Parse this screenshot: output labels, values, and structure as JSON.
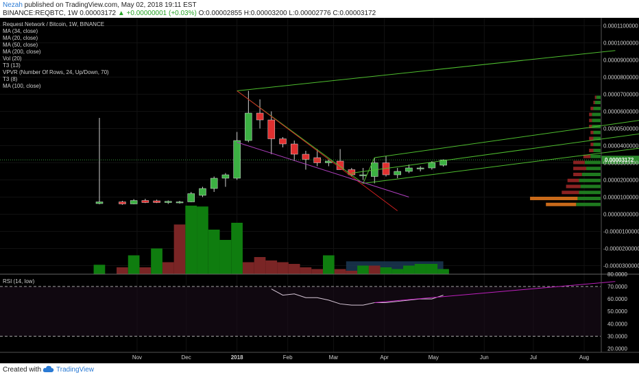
{
  "header": {
    "author": "Nezah",
    "published_text": " published on TradingView.com, May 02, 2018 19:11 EST",
    "symbol_line_start": "BINANCE:REQBTC, 1W  0.00003172 ",
    "change_text": "▲ +0.00000001 (+0.03%)",
    "ohlc_text": " O:0.00002855 H:0.00003200 L:0.00002776 C:0.00003172"
  },
  "indicators": [
    "Request Network / Bitcoin, 1W, BINANCE",
    "MA (34, close)",
    "MA (20, close)",
    "MA (50, close)",
    "MA (200, close)",
    "Vol (20)",
    "T3 (13)",
    "VPVR (Number Of Rows, 24, Up/Down, 70)",
    "T3 (8)",
    "MA (100, close)"
  ],
  "rsi_label": "RSI (14, low)",
  "footer": {
    "created_with": "Created with",
    "brand": "TradingView"
  },
  "colors": {
    "background": "#000000",
    "up": "#3cb043",
    "down": "#e03030",
    "volume_up": "#0f7d0f",
    "volume_down": "#7a2525",
    "trend_green": "#4fbf2f",
    "trend_red": "#d02020",
    "trend_purple": "#b040c0",
    "rsi_line": "#d8c8d8",
    "rsi_trend": "#c020c0",
    "price_badge": "#2d8a2d"
  },
  "chart_data": {
    "type": "candlestick",
    "title": "Request Network / Bitcoin, 1W, BINANCE",
    "price_axis_ticks": [
      "0.0001100000",
      "0.0001000000",
      "0.0000900000",
      "0.0000800000",
      "0.0000700000",
      "0.0000600000",
      "0.0000500000",
      "0.0000400000",
      "0.0000300000",
      "0.0000200000",
      "0.0000100000",
      "0.0000000000",
      "-0.0000100000",
      "-0.0000200000",
      "-0.0000300000"
    ],
    "price_ylim": [
      -3.5e-05,
      0.000113
    ],
    "last_price_label": "0.00003172",
    "last_price": 3.172e-05,
    "x_tick_labels": [
      "Nov",
      "Dec",
      "2018",
      "Feb",
      "Mar",
      "Apr",
      "May",
      "Jun",
      "Jul",
      "Aug"
    ],
    "candles": [
      {
        "t": "2017-10-09",
        "o": 6.2e-06,
        "h": 5.62e-05,
        "l": 5.8e-06,
        "c": 7.2e-06
      },
      {
        "t": "2017-10-23",
        "o": 7.2e-06,
        "h": 7.8e-06,
        "l": 5.5e-06,
        "c": 6e-06
      },
      {
        "t": "2017-10-30",
        "o": 6e-06,
        "h": 8.8e-06,
        "l": 5.8e-06,
        "c": 8e-06
      },
      {
        "t": "2017-11-06",
        "o": 8e-06,
        "h": 9e-06,
        "l": 6.5e-06,
        "c": 6.8e-06
      },
      {
        "t": "2017-11-13",
        "o": 7.8e-06,
        "h": 8.5e-06,
        "l": 6.5e-06,
        "c": 6.8e-06
      },
      {
        "t": "2017-11-20",
        "o": 6.8e-06,
        "h": 8e-06,
        "l": 6e-06,
        "c": 7.5e-06
      },
      {
        "t": "2017-11-27",
        "o": 6.8e-06,
        "h": 7.8e-06,
        "l": 6.2e-06,
        "c": 7.2e-06
      },
      {
        "t": "2017-12-04",
        "o": 7.2e-06,
        "h": 1.3e-05,
        "l": 7e-06,
        "c": 1.2e-05
      },
      {
        "t": "2017-12-11",
        "o": 1.1e-05,
        "h": 1.6e-05,
        "l": 1e-05,
        "c": 1.5e-05
      },
      {
        "t": "2017-12-18",
        "o": 1.5e-05,
        "h": 2.2e-05,
        "l": 1.3e-05,
        "c": 2.1e-05
      },
      {
        "t": "2017-12-25",
        "o": 2.1e-05,
        "h": 2.4e-05,
        "l": 1.6e-05,
        "c": 2.3e-05
      },
      {
        "t": "2018-01-01",
        "o": 2.1e-05,
        "h": 4.8e-05,
        "l": 2e-05,
        "c": 4.3e-05
      },
      {
        "t": "2018-01-08",
        "o": 4.3e-05,
        "h": 7.2e-05,
        "l": 4.2e-05,
        "c": 5.9e-05
      },
      {
        "t": "2018-01-15",
        "o": 5.9e-05,
        "h": 6.7e-05,
        "l": 5e-05,
        "c": 5.5e-05
      },
      {
        "t": "2018-01-22",
        "o": 5.5e-05,
        "h": 6e-05,
        "l": 3.5e-05,
        "c": 4.4e-05
      },
      {
        "t": "2018-01-29",
        "o": 4.4e-05,
        "h": 4.5e-05,
        "l": 3.9e-05,
        "c": 4.1e-05
      },
      {
        "t": "2018-02-05",
        "o": 4.1e-05,
        "h": 4.3e-05,
        "l": 3.1e-05,
        "c": 3.5e-05
      },
      {
        "t": "2018-02-12",
        "o": 3.5e-05,
        "h": 3.7e-05,
        "l": 2.6e-05,
        "c": 3.2e-05
      },
      {
        "t": "2018-02-19",
        "o": 3.3e-05,
        "h": 3.8e-05,
        "l": 2.8e-05,
        "c": 3e-05
      },
      {
        "t": "2018-02-26",
        "o": 3e-05,
        "h": 3.2e-05,
        "l": 2.8e-05,
        "c": 3.1e-05
      },
      {
        "t": "2018-03-05",
        "o": 3.1e-05,
        "h": 3.8e-05,
        "l": 2.6e-05,
        "c": 2.6e-05
      },
      {
        "t": "2018-03-12",
        "o": 2.6e-05,
        "h": 2.7e-05,
        "l": 2.2e-05,
        "c": 2.3e-05
      },
      {
        "t": "2018-03-19",
        "o": 2.3e-05,
        "h": 2.7e-05,
        "l": 2e-05,
        "c": 2.3e-05
      },
      {
        "t": "2018-03-26",
        "o": 2.2e-05,
        "h": 3.3e-05,
        "l": 1.8e-05,
        "c": 3e-05
      },
      {
        "t": "2018-04-02",
        "o": 3e-05,
        "h": 3.4e-05,
        "l": 2.2e-05,
        "c": 2.3e-05
      },
      {
        "t": "2018-04-09",
        "o": 2.3e-05,
        "h": 2.7e-05,
        "l": 2.1e-05,
        "c": 2.5e-05
      },
      {
        "t": "2018-04-16",
        "o": 2.5e-05,
        "h": 2.9e-05,
        "l": 2.4e-05,
        "c": 2.7e-05
      },
      {
        "t": "2018-04-23",
        "o": 2.7e-05,
        "h": 2.8e-05,
        "l": 2.5e-05,
        "c": 2.7e-05
      },
      {
        "t": "2018-04-30",
        "o": 2.7e-05,
        "h": 3.1e-05,
        "l": 2.6e-05,
        "c": 3e-05
      },
      {
        "t": "2018-05-07",
        "o": 2.86e-05,
        "h": 3.2e-05,
        "l": 2.78e-05,
        "c": 3.17e-05
      }
    ],
    "volume_note": "volume pane shares the price axis (bars under 0.0000000000)",
    "volume": [
      {
        "t": "2017-10-09",
        "v": 5.5e-06,
        "up": true
      },
      {
        "t": "2017-10-23",
        "v": 4e-06,
        "up": false
      },
      {
        "t": "2017-10-30",
        "v": 1.1e-05,
        "up": true
      },
      {
        "t": "2017-11-06",
        "v": 4e-06,
        "up": false
      },
      {
        "t": "2017-11-13",
        "v": 1.5e-05,
        "up": true
      },
      {
        "t": "2017-11-20",
        "v": 7e-06,
        "up": false
      },
      {
        "t": "2017-11-27",
        "v": 2.9e-05,
        "up": false
      },
      {
        "t": "2017-12-04",
        "v": 4e-05,
        "up": true
      },
      {
        "t": "2017-12-11",
        "v": 3.95e-05,
        "up": true
      },
      {
        "t": "2017-12-18",
        "v": 2.6e-05,
        "up": true
      },
      {
        "t": "2017-12-25",
        "v": 2e-05,
        "up": true
      },
      {
        "t": "2018-01-01",
        "v": 3e-05,
        "up": true
      },
      {
        "t": "2018-01-08",
        "v": 7e-06,
        "up": false
      },
      {
        "t": "2018-01-15",
        "v": 1e-05,
        "up": false
      },
      {
        "t": "2018-01-22",
        "v": 8e-06,
        "up": false
      },
      {
        "t": "2018-01-29",
        "v": 7e-06,
        "up": false
      },
      {
        "t": "2018-02-05",
        "v": 6e-06,
        "up": false
      },
      {
        "t": "2018-02-12",
        "v": 4e-06,
        "up": false
      },
      {
        "t": "2018-02-19",
        "v": 3e-06,
        "up": false
      },
      {
        "t": "2018-02-26",
        "v": 1.1e-05,
        "up": true
      },
      {
        "t": "2018-03-05",
        "v": 3e-06,
        "up": false
      },
      {
        "t": "2018-03-12",
        "v": 2e-06,
        "up": false
      },
      {
        "t": "2018-03-19",
        "v": 5e-06,
        "up": true
      },
      {
        "t": "2018-03-26",
        "v": 5e-06,
        "up": false
      },
      {
        "t": "2018-04-02",
        "v": 4e-06,
        "up": true
      },
      {
        "t": "2018-04-09",
        "v": 3e-06,
        "up": true
      },
      {
        "t": "2018-04-16",
        "v": 5e-06,
        "up": true
      },
      {
        "t": "2018-04-23",
        "v": 6e-06,
        "up": true
      },
      {
        "t": "2018-04-30",
        "v": 6e-06,
        "up": true
      },
      {
        "t": "2018-05-07",
        "v": 3e-06,
        "up": true
      }
    ],
    "vpvr_note": "volume profile rows: price level, up-volume share and down-volume share (relative units)",
    "vpvr": [
      {
        "price": 6.8e-05,
        "up": 3,
        "down": 1
      },
      {
        "price": 6.5e-05,
        "up": 4,
        "down": 1
      },
      {
        "price": 6.15e-05,
        "up": 5,
        "down": 2
      },
      {
        "price": 5.8e-05,
        "up": 6,
        "down": 2
      },
      {
        "price": 5.45e-05,
        "up": 6,
        "down": 2
      },
      {
        "price": 5.1e-05,
        "up": 6,
        "down": 2
      },
      {
        "price": 4.75e-05,
        "up": 5,
        "down": 2
      },
      {
        "price": 4.4e-05,
        "up": 5,
        "down": 3
      },
      {
        "price": 4.05e-05,
        "up": 5,
        "down": 2
      },
      {
        "price": 3.7e-05,
        "up": 5,
        "down": 3
      },
      {
        "price": 3.35e-05,
        "up": 7,
        "down": 5
      },
      {
        "price": 3e-05,
        "up": 11,
        "down": 8
      },
      {
        "price": 2.65e-05,
        "up": 10,
        "down": 9
      },
      {
        "price": 2.3e-05,
        "up": 13,
        "down": 6
      },
      {
        "price": 1.95e-05,
        "up": 15,
        "down": 8
      },
      {
        "price": 1.6e-05,
        "up": 14,
        "down": 10
      },
      {
        "price": 1.25e-05,
        "up": 15,
        "down": 12
      },
      {
        "price": 9e-06,
        "up": 16,
        "down": 33
      },
      {
        "price": 5.5e-06,
        "up": 17,
        "down": 21
      }
    ],
    "trendlines": [
      {
        "color": "green",
        "points": [
          [
            "2018-01-01",
            7.2e-05
          ],
          [
            "2018-08-20",
            9.55e-05
          ]
        ]
      },
      {
        "color": "green",
        "points": [
          [
            "2018-01-01",
            7.2e-05
          ],
          [
            "2018-03-19",
            1.8e-05
          ]
        ]
      },
      {
        "color": "green",
        "points": [
          [
            "2018-03-19",
            1.8e-05
          ],
          [
            "2018-03-26",
            3.3e-05
          ]
        ]
      },
      {
        "color": "green",
        "points": [
          [
            "2018-03-26",
            3.3e-05
          ],
          [
            "2018-09-24",
            5.75e-05
          ]
        ]
      },
      {
        "color": "green",
        "points": [
          [
            "2018-03-12",
            2.4e-05
          ],
          [
            "2018-09-24",
            4.95e-05
          ]
        ]
      },
      {
        "color": "green",
        "points": [
          [
            "2018-03-19",
            1.8e-05
          ],
          [
            "2018-09-24",
            4.1e-05
          ]
        ]
      },
      {
        "color": "red",
        "points": [
          [
            "2018-01-01",
            7.2e-05
          ],
          [
            "2018-04-09",
            2e-06
          ]
        ]
      },
      {
        "color": "purple",
        "points": [
          [
            "2018-01-01",
            4.2e-05
          ],
          [
            "2018-04-16",
            1e-05
          ]
        ]
      }
    ],
    "rsi": {
      "label": "RSI (14, low)",
      "ticks": [
        "80.0000",
        "70.0000",
        "60.0000",
        "50.0000",
        "40.0000",
        "30.0000",
        "20.0000"
      ],
      "ylim": [
        17,
        81
      ],
      "bands": [
        70,
        30
      ],
      "series": [
        {
          "t": "2018-01-22",
          "v": 68
        },
        {
          "t": "2018-01-29",
          "v": 63
        },
        {
          "t": "2018-02-05",
          "v": 64
        },
        {
          "t": "2018-02-12",
          "v": 61
        },
        {
          "t": "2018-02-19",
          "v": 61
        },
        {
          "t": "2018-02-26",
          "v": 59
        },
        {
          "t": "2018-03-05",
          "v": 56
        },
        {
          "t": "2018-03-12",
          "v": 55
        },
        {
          "t": "2018-03-19",
          "v": 55
        },
        {
          "t": "2018-03-26",
          "v": 57
        },
        {
          "t": "2018-04-02",
          "v": 57
        },
        {
          "t": "2018-04-09",
          "v": 58
        },
        {
          "t": "2018-04-16",
          "v": 59
        },
        {
          "t": "2018-04-23",
          "v": 60
        },
        {
          "t": "2018-04-30",
          "v": 60
        },
        {
          "t": "2018-05-07",
          "v": 63
        }
      ],
      "trendline": [
        [
          "2018-03-26",
          57
        ],
        [
          "2018-08-20",
          74
        ]
      ]
    }
  }
}
